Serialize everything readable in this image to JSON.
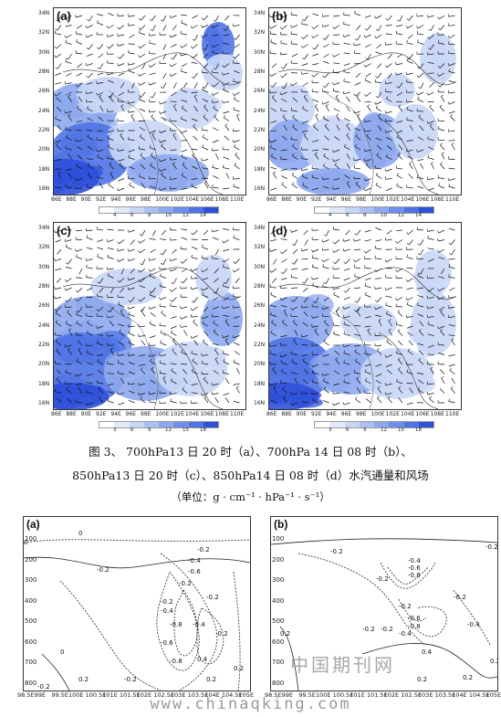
{
  "maps": [
    {
      "label": "(a)",
      "colorbar": [
        "4",
        "6",
        "8",
        "10",
        "12",
        "14"
      ]
    },
    {
      "label": "(b)",
      "colorbar": [
        "4",
        "6",
        "8",
        "10",
        "12",
        "14"
      ]
    },
    {
      "label": "(c)",
      "colorbar": [
        "3",
        "6",
        "9",
        "12",
        "15",
        "18"
      ]
    },
    {
      "label": "(d)",
      "colorbar": [
        "3",
        "6",
        "9",
        "12",
        "15",
        "18"
      ]
    }
  ],
  "map_yticks": [
    "34N",
    "32N",
    "30N",
    "28N",
    "26N",
    "24N",
    "22N",
    "20N",
    "18N",
    "16N"
  ],
  "map_xticks": [
    "86E",
    "88E",
    "90E",
    "92E",
    "94E",
    "96E",
    "98E",
    "100E",
    "102E",
    "104E",
    "106E",
    "108E",
    "110E"
  ],
  "colors": {
    "shade_light": "#c9d7f6",
    "shade_mid": "#8ea8ee",
    "shade_dark": "#4f73e4",
    "shade_deep": "#2f50d9"
  },
  "caption": {
    "line1": "图 3、  700hPa13 日 20 时（a）、700hPa 14 日 08 时（b）、",
    "line2": "850hPa13 日 20 时（c）、850hPa14 日 08 时（d）水汽通量和风场",
    "line3": "（单位：g · cm⁻¹ · hPa⁻¹ · s⁻¹）"
  },
  "cross_sections": [
    {
      "label": "(a)",
      "contour_labels": [
        "0",
        "0",
        "-0.2",
        "-0.2",
        "-0.4",
        "-0.6",
        "-0.2",
        "-0.2",
        "-0.4",
        "-0.8",
        "-0.4",
        "-0.2",
        "-0.6",
        "-0.8",
        "0.2",
        "0.2",
        "-0.2",
        "0.4",
        "0",
        "-0.2",
        "0.2",
        "-0.2"
      ]
    },
    {
      "label": "(b)",
      "contour_labels": [
        "-0.2",
        "-0.2",
        "-0.2",
        "-0.4",
        "-0.6",
        "-0.8",
        "-0.2",
        "-0.6",
        "-0.8",
        "-0.4",
        "-0.2",
        "0.2",
        "0.2",
        "-0.2",
        "0.4",
        "-0.4",
        "0.2",
        "0.2",
        "-0.2"
      ]
    }
  ],
  "xs_yticks": [
    "100",
    "200",
    "300",
    "400",
    "500",
    "600",
    "700",
    "800"
  ],
  "xs_xticks": [
    "98.5E",
    "99E",
    "99.5E",
    "100E",
    "100.5E",
    "101E",
    "101.5E",
    "102E",
    "102.5E",
    "103E",
    "103.5E",
    "104E",
    "104.5E",
    "105E"
  ],
  "watermark": {
    "cn": "中国期刊网",
    "url": "www.chinaqking.com"
  }
}
